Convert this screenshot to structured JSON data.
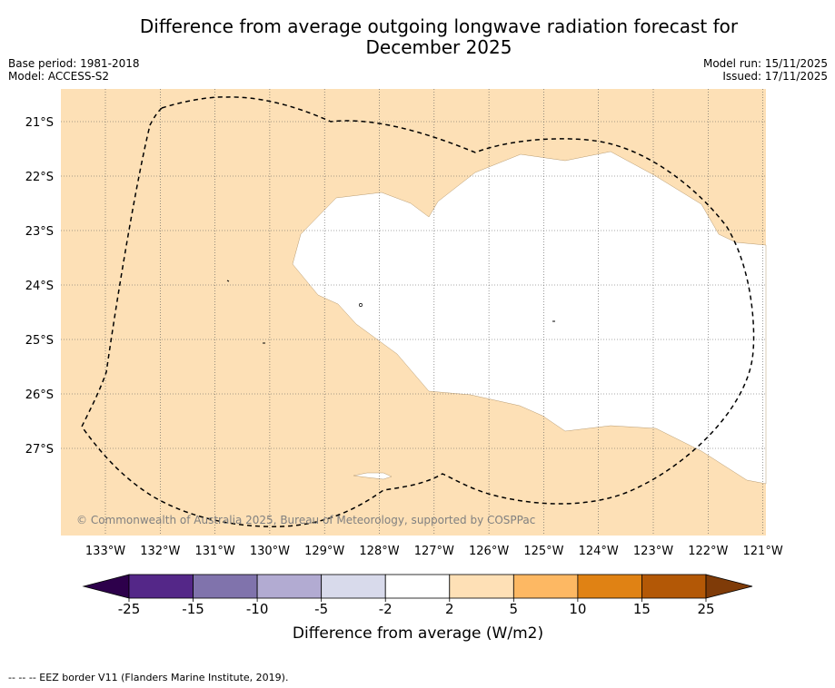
{
  "title": {
    "line1": "Difference from average outgoing longwave radiation forecast for",
    "line2": "December 2025"
  },
  "meta": {
    "base_period": "Base period: 1981-2018",
    "model": "Model: ACCESS-S2",
    "model_run": "Model run: 15/11/2025",
    "issued": "Issued: 17/11/2025"
  },
  "map": {
    "latitude_labels": [
      "21°S",
      "22°S",
      "23°S",
      "24°S",
      "25°S",
      "26°S",
      "27°S"
    ],
    "longitude_labels": [
      "133°W",
      "132°W",
      "131°W",
      "130°W",
      "129°W",
      "128°W",
      "127°W",
      "126°W",
      "125°W",
      "124°W",
      "123°W",
      "122°W",
      "121°W"
    ],
    "copyright": "© Commonwealth of Australia 2025, Bureau of Meteorology, supported by COSPPac",
    "colors": {
      "category_2_to_5": "#fde0b6",
      "category_minus2_to_2": "#ffffff",
      "eez_border": "#000000"
    }
  },
  "colorbar": {
    "ticks": [
      "-25",
      "-15",
      "-10",
      "-5",
      "-2",
      "2",
      "5",
      "10",
      "15",
      "25"
    ],
    "colors": [
      "#2d004b",
      "#542788",
      "#8073ac",
      "#b2abd2",
      "#d8daeb",
      "#ffffff",
      "#fee0b6",
      "#fdb863",
      "#e08214",
      "#b35806",
      "#7f3b08"
    ],
    "label": "Difference from average (W/m2)"
  },
  "footnote": "--  --  -- EEZ border V11 (Flanders Marine Institute, 2019)."
}
